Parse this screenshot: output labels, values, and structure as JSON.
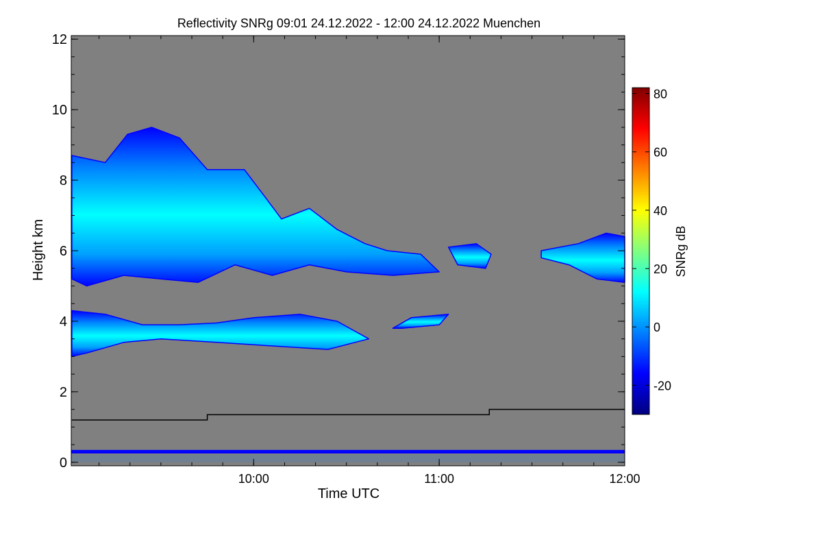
{
  "chart_data": {
    "type": "heatmap",
    "title": "Reflectivity SNRg   09:01 24.12.2022 - 12:00 24.12.2022 Muenchen",
    "xlabel": "Time UTC",
    "ylabel": "Height km",
    "xlim_hours": [
      9.0167,
      12.0
    ],
    "ylim": [
      -0.1,
      12.1
    ],
    "x_ticks": [
      {
        "value": 10,
        "label": "10:00"
      },
      {
        "value": 11,
        "label": "11:00"
      },
      {
        "value": 12,
        "label": "12:00"
      }
    ],
    "y_ticks": [
      {
        "value": 0,
        "label": "0"
      },
      {
        "value": 2,
        "label": "2"
      },
      {
        "value": 4,
        "label": "4"
      },
      {
        "value": 6,
        "label": "6"
      },
      {
        "value": 8,
        "label": "8"
      },
      {
        "value": 10,
        "label": "10"
      },
      {
        "value": 12,
        "label": "12"
      }
    ],
    "colorbar": {
      "label": "SNRg dB",
      "range": [
        -30,
        82
      ],
      "ticks": [
        {
          "value": -20,
          "label": "-20"
        },
        {
          "value": 0,
          "label": "0"
        },
        {
          "value": 20,
          "label": "20"
        },
        {
          "value": 40,
          "label": "40"
        },
        {
          "value": 60,
          "label": "60"
        },
        {
          "value": 80,
          "label": "80"
        }
      ],
      "colors": [
        "#000080",
        "#0000ff",
        "#0080ff",
        "#00ffff",
        "#80ff80",
        "#ffff00",
        "#ff8000",
        "#ff0000",
        "#800000"
      ]
    },
    "background_color": "#808080",
    "cloud_layers": [
      {
        "name": "upper",
        "points": [
          [
            9.02,
            5.2
          ],
          [
            9.02,
            8.7
          ],
          [
            9.2,
            8.5
          ],
          [
            9.32,
            9.3
          ],
          [
            9.45,
            9.5
          ],
          [
            9.6,
            9.2
          ],
          [
            9.75,
            8.3
          ],
          [
            9.95,
            8.3
          ],
          [
            10.05,
            7.6
          ],
          [
            10.15,
            6.9
          ],
          [
            10.3,
            7.2
          ],
          [
            10.45,
            6.6
          ],
          [
            10.6,
            6.2
          ],
          [
            10.72,
            6.0
          ],
          [
            10.9,
            5.9
          ],
          [
            11.0,
            5.4
          ],
          [
            10.75,
            5.3
          ],
          [
            10.5,
            5.4
          ],
          [
            10.3,
            5.6
          ],
          [
            10.1,
            5.3
          ],
          [
            9.9,
            5.6
          ],
          [
            9.7,
            5.1
          ],
          [
            9.5,
            5.2
          ],
          [
            9.3,
            5.3
          ],
          [
            9.1,
            5.0
          ]
        ]
      },
      {
        "name": "upper-right",
        "points": [
          [
            11.55,
            6.0
          ],
          [
            11.75,
            6.2
          ],
          [
            11.9,
            6.5
          ],
          [
            12.0,
            6.4
          ],
          [
            12.0,
            5.1
          ],
          [
            11.85,
            5.2
          ],
          [
            11.7,
            5.6
          ],
          [
            11.55,
            5.8
          ]
        ]
      },
      {
        "name": "upper-mid-fragment",
        "points": [
          [
            11.05,
            6.1
          ],
          [
            11.2,
            6.2
          ],
          [
            11.28,
            5.9
          ],
          [
            11.25,
            5.5
          ],
          [
            11.1,
            5.6
          ]
        ]
      },
      {
        "name": "lower",
        "points": [
          [
            9.02,
            3.0
          ],
          [
            9.02,
            4.3
          ],
          [
            9.2,
            4.2
          ],
          [
            9.4,
            3.9
          ],
          [
            9.6,
            3.9
          ],
          [
            9.8,
            3.95
          ],
          [
            10.0,
            4.1
          ],
          [
            10.25,
            4.2
          ],
          [
            10.45,
            4.0
          ],
          [
            10.62,
            3.5
          ],
          [
            10.4,
            3.2
          ],
          [
            10.1,
            3.3
          ],
          [
            9.8,
            3.4
          ],
          [
            9.5,
            3.5
          ],
          [
            9.3,
            3.4
          ],
          [
            9.1,
            3.1
          ]
        ]
      },
      {
        "name": "lower-fragment",
        "points": [
          [
            10.75,
            3.8
          ],
          [
            10.85,
            4.1
          ],
          [
            11.05,
            4.2
          ],
          [
            11.0,
            3.9
          ],
          [
            10.8,
            3.8
          ]
        ]
      }
    ],
    "boundary_line": [
      [
        9.02,
        1.2
      ],
      [
        9.75,
        1.2
      ],
      [
        9.75,
        1.35
      ],
      [
        11.27,
        1.35
      ],
      [
        11.27,
        1.5
      ],
      [
        12.0,
        1.5
      ]
    ],
    "legend": "none"
  }
}
